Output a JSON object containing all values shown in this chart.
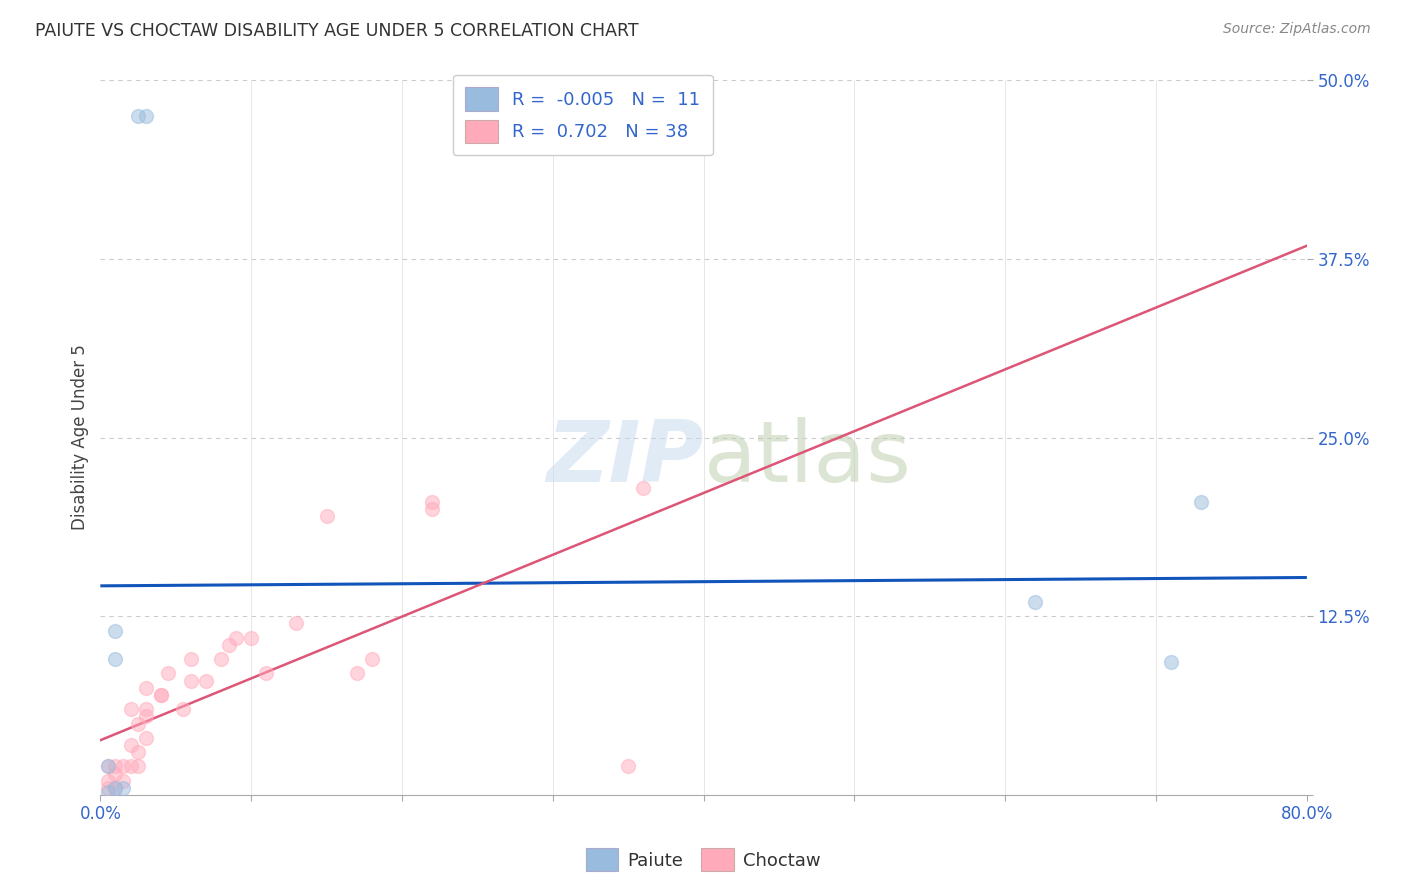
{
  "title": "PAIUTE VS CHOCTAW DISABILITY AGE UNDER 5 CORRELATION CHART",
  "source": "Source: ZipAtlas.com",
  "ylabel": "Disability Age Under 5",
  "xlim": [
    0.0,
    0.8
  ],
  "ylim": [
    0.0,
    0.5
  ],
  "xticks": [
    0.0,
    0.1,
    0.2,
    0.3,
    0.4,
    0.5,
    0.6,
    0.7,
    0.8
  ],
  "yticks": [
    0.0,
    0.125,
    0.25,
    0.375,
    0.5
  ],
  "yticklabels": [
    "",
    "12.5%",
    "25.0%",
    "37.5%",
    "50.0%"
  ],
  "paiute_color": "#99BBDD",
  "choctaw_color": "#FFAABB",
  "paiute_R": -0.005,
  "paiute_N": 11,
  "choctaw_R": 0.702,
  "choctaw_N": 38,
  "paiute_x": [
    0.025,
    0.03,
    0.01,
    0.01,
    0.005,
    0.01,
    0.015,
    0.005,
    0.62,
    0.71,
    0.73
  ],
  "paiute_y": [
    0.475,
    0.475,
    0.115,
    0.095,
    0.02,
    0.005,
    0.005,
    0.002,
    0.135,
    0.093,
    0.205
  ],
  "choctaw_x": [
    0.005,
    0.005,
    0.005,
    0.01,
    0.01,
    0.01,
    0.015,
    0.015,
    0.02,
    0.02,
    0.02,
    0.025,
    0.025,
    0.025,
    0.03,
    0.03,
    0.03,
    0.03,
    0.04,
    0.04,
    0.045,
    0.055,
    0.06,
    0.06,
    0.07,
    0.08,
    0.085,
    0.09,
    0.1,
    0.11,
    0.13,
    0.15,
    0.17,
    0.18,
    0.22,
    0.22,
    0.35,
    0.36
  ],
  "choctaw_y": [
    0.005,
    0.01,
    0.02,
    0.005,
    0.015,
    0.02,
    0.01,
    0.02,
    0.02,
    0.035,
    0.06,
    0.02,
    0.03,
    0.05,
    0.04,
    0.055,
    0.06,
    0.075,
    0.07,
    0.07,
    0.085,
    0.06,
    0.08,
    0.095,
    0.08,
    0.095,
    0.105,
    0.11,
    0.11,
    0.085,
    0.12,
    0.195,
    0.085,
    0.095,
    0.205,
    0.2,
    0.02,
    0.215
  ],
  "legend_color": "#3366CC",
  "axis_tick_color": "#3366CC",
  "grid_color": "#CCCCCC",
  "background_color": "#FFFFFF",
  "marker_size": 100,
  "marker_alpha": 0.5,
  "paiute_line_color": "#1155BB",
  "choctaw_line_color": "#DD5577",
  "dashed_line_color": "#DDAAAA",
  "watermark_color": "#C5D8EE",
  "watermark_alpha": 0.5
}
